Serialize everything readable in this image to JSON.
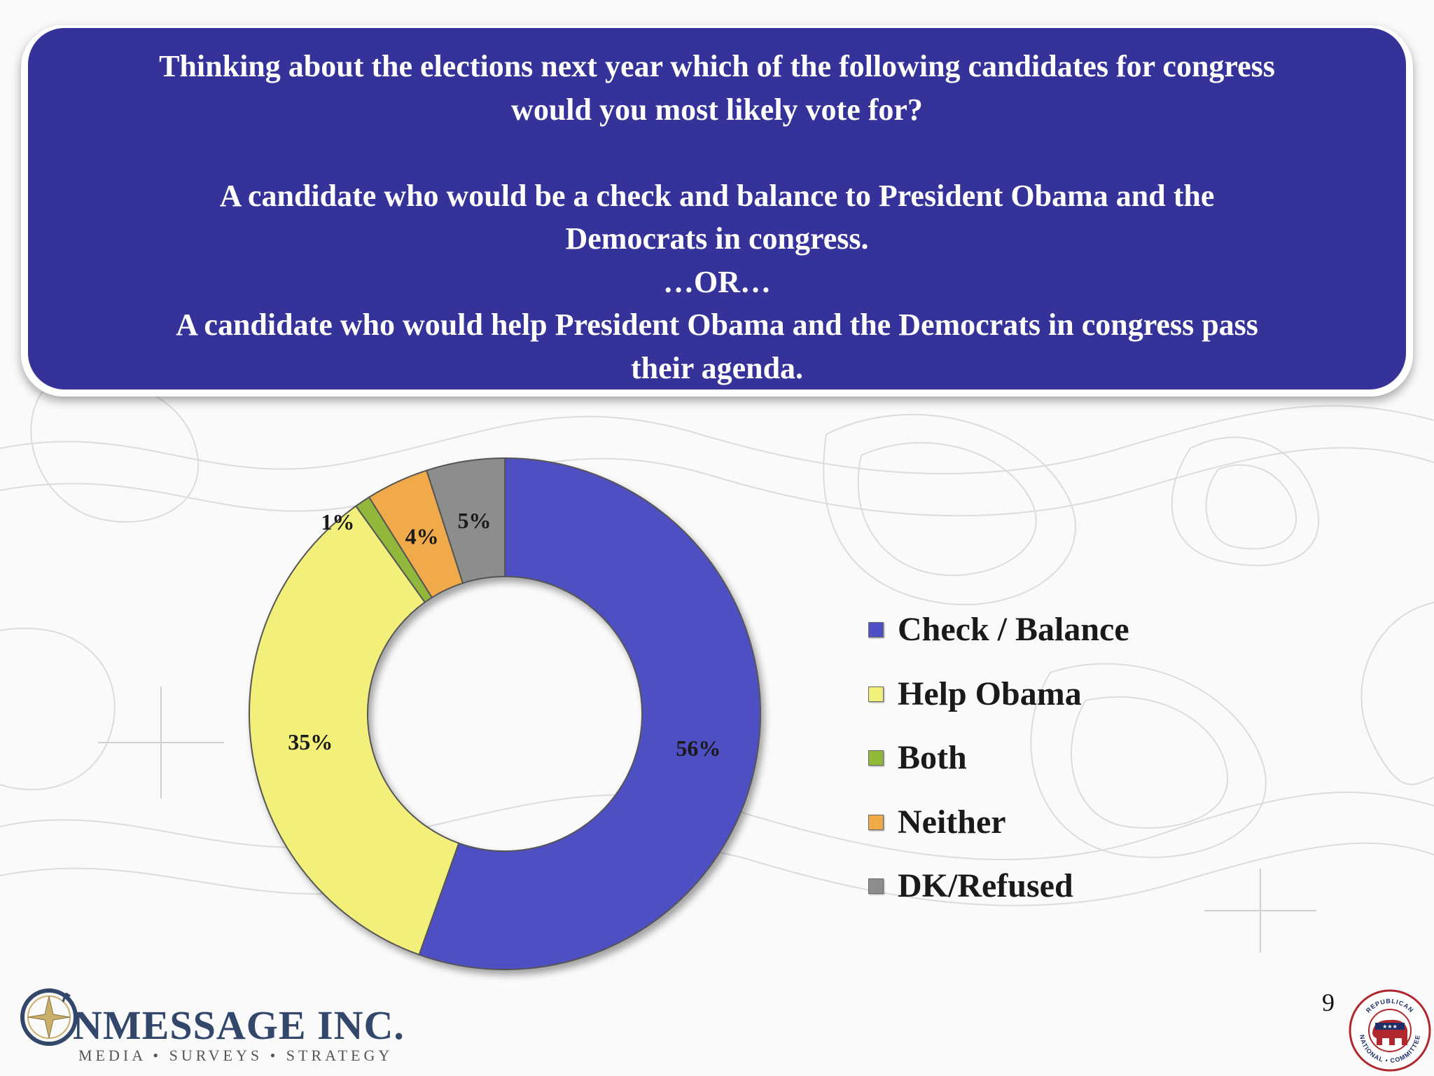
{
  "question": {
    "lines": [
      "Thinking about the elections next year which of the following candidates for congress",
      "would you most likely vote for?",
      "",
      "A candidate who would be a check and balance to President Obama and the",
      "Democrats in congress.",
      "…OR…",
      "A candidate who would help President Obama and the Democrats in congress pass",
      "their agenda."
    ]
  },
  "chart_data": {
    "type": "pie",
    "variant": "donut",
    "categories": [
      "Check / Balance",
      "Help Obama",
      "Both",
      "Neither",
      "DK/Refused"
    ],
    "values": [
      56,
      35,
      1,
      4,
      5
    ],
    "data_labels": [
      "56%",
      "35%",
      "1%",
      "4%",
      "5%"
    ],
    "colors": [
      "#4f50c4",
      "#f2f07a",
      "#92b83a",
      "#f1aa48",
      "#8d8d8d"
    ],
    "legend_position": "right"
  },
  "footer": {
    "logo_name": "NMESSAGE INC.",
    "logo_tagline": "MEDIA • SURVEYS • STRATEGY",
    "page_number": "9",
    "seal_top_text": "REPUBLICAN",
    "seal_bottom_text": "NATIONAL • COMMITTEE"
  }
}
